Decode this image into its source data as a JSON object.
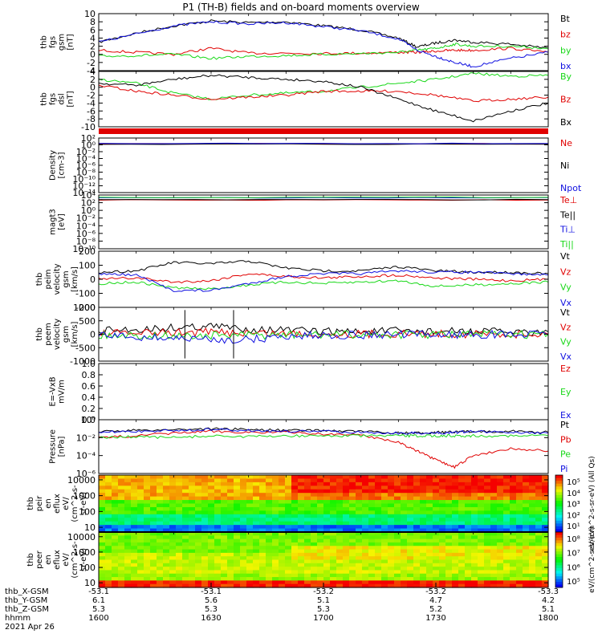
{
  "title": "P1 (TH-B) fields and on-board moments overview",
  "colors": {
    "black": "#000000",
    "red": "#e00000",
    "green": "#18d818",
    "blue": "#1010e0"
  },
  "chart_data": [
    {
      "type": "line",
      "panel": "fgs-mag",
      "ylabel": [
        "thb",
        "fgs",
        "gsm",
        "[nT]"
      ],
      "ylim": [
        -4,
        10
      ],
      "yticks": [
        10,
        8,
        6,
        4,
        2,
        0,
        -2,
        -4
      ],
      "tick_labels": [
        "10",
        "8",
        "6",
        "4",
        "2",
        "0",
        "-2",
        "-4"
      ],
      "x": [
        1600,
        1610,
        1620,
        1630,
        1640,
        1650,
        1700,
        1710,
        1720,
        1725,
        1730,
        1735,
        1740,
        1750,
        1800
      ],
      "series": [
        {
          "name": "Bt",
          "color": "black",
          "values": [
            3.0,
            5.2,
            7.0,
            8.2,
            7.8,
            8.0,
            7.0,
            6.0,
            4.0,
            1.8,
            2.8,
            3.5,
            3.0,
            2.5,
            1.5
          ]
        },
        {
          "name": "bz",
          "color": "red",
          "values": [
            1.0,
            0.5,
            0.0,
            1.5,
            0.3,
            0.3,
            0.2,
            0.3,
            0.5,
            0.5,
            0.8,
            1.0,
            1.0,
            1.5,
            0.5
          ]
        },
        {
          "name": "by",
          "color": "green",
          "values": [
            -0.5,
            -0.3,
            0.0,
            -1.0,
            -0.5,
            -0.3,
            0.0,
            0.2,
            0.5,
            1.0,
            1.5,
            2.5,
            2.0,
            2.0,
            1.5
          ]
        },
        {
          "name": "bx",
          "color": "blue",
          "values": [
            3.0,
            5.0,
            7.0,
            8.0,
            7.5,
            7.8,
            6.8,
            5.8,
            3.8,
            1.0,
            -0.5,
            -2.0,
            -3.0,
            -1.0,
            0.5
          ]
        }
      ]
    },
    {
      "type": "line",
      "panel": "fgs-B",
      "ylabel": [
        "thb",
        "fgs",
        "dsl",
        "[nT]"
      ],
      "ylim": [
        -10,
        4
      ],
      "yticks": [
        4,
        2,
        0,
        -2,
        -4,
        -6,
        -8,
        -10
      ],
      "tick_labels": [
        "4",
        "2",
        "0",
        "-2",
        "-4",
        "-6",
        "-8",
        "-10"
      ],
      "x": [
        1600,
        1610,
        1620,
        1630,
        1640,
        1650,
        1700,
        1710,
        1720,
        1730,
        1740,
        1750,
        1800
      ],
      "series": [
        {
          "name": "By",
          "color": "green",
          "values": [
            2.0,
            1.0,
            -1.5,
            -3.0,
            -2.0,
            -1.5,
            -1.0,
            0.0,
            1.0,
            2.0,
            3.5,
            2.8,
            3.0
          ]
        },
        {
          "name": "Bz",
          "color": "red",
          "values": [
            0.5,
            -1.0,
            -2.0,
            -3.0,
            -2.5,
            -2.0,
            -1.0,
            -1.0,
            -1.0,
            -2.0,
            -3.5,
            -3.0,
            -2.5
          ]
        },
        {
          "name": "Bx",
          "color": "black",
          "values": [
            1.0,
            0.5,
            2.0,
            3.0,
            2.5,
            2.0,
            1.5,
            0.0,
            -3.0,
            -6.0,
            -8.5,
            -6.0,
            -4.0
          ]
        }
      ]
    },
    {
      "type": "line",
      "panel": "density",
      "ylabel": [
        "Density",
        "[cm-3]"
      ],
      "ylim": [
        -14,
        2
      ],
      "log": true,
      "yticks": [
        2,
        0,
        -2,
        -4,
        -6,
        -8,
        -10,
        -12,
        -14
      ],
      "tick_labels": [
        "10²",
        "10⁰",
        "10⁻²",
        "10⁻⁴",
        "10⁻⁶",
        "10⁻⁸",
        "10⁻¹⁰",
        "10⁻¹²",
        "10⁻¹⁴"
      ],
      "series": [
        {
          "name": "Ne",
          "color": "red",
          "values": [
            0.3,
            0.3,
            0.3
          ]
        },
        {
          "name": "Ni",
          "color": "black",
          "values": [
            0.2,
            0.2,
            0.2
          ]
        },
        {
          "name": "Npot",
          "color": "blue",
          "values": [
            0.4,
            0.4,
            0.4
          ]
        }
      ]
    },
    {
      "type": "line",
      "panel": "temperature",
      "ylabel": [
        "magt3",
        "[eV]"
      ],
      "ylim": [
        -10,
        4
      ],
      "log": true,
      "yticks": [
        4,
        2,
        0,
        -2,
        -4,
        -6,
        -8,
        -10
      ],
      "tick_labels": [
        "10⁴",
        "10²",
        "10⁰",
        "10⁻²",
        "10⁻⁴",
        "10⁻⁶",
        "10⁻⁸",
        "10⁻¹⁰"
      ],
      "series": [
        {
          "name": "Te⊥",
          "color": "red",
          "values": [
            2.7,
            2.7,
            2.7
          ]
        },
        {
          "name": "Te||",
          "color": "black",
          "values": [
            2.8,
            2.8,
            2.8
          ]
        },
        {
          "name": "Ti⊥",
          "color": "blue",
          "values": [
            3.3,
            3.3,
            3.3
          ]
        },
        {
          "name": "Ti||",
          "color": "green",
          "values": [
            3.4,
            3.4,
            3.4
          ]
        }
      ]
    },
    {
      "type": "line",
      "panel": "peim-velocity",
      "ylabel": [
        "thb",
        "peim",
        "velocity",
        "gsm",
        "[km/s]"
      ],
      "ylim": [
        -200,
        200
      ],
      "yticks": [
        200,
        100,
        0,
        -100,
        -200
      ],
      "tick_labels": [
        "200",
        "100",
        "0",
        "-100",
        "-200"
      ],
      "x": [
        1600,
        1610,
        1620,
        1630,
        1640,
        1650,
        1700,
        1710,
        1720,
        1730,
        1740,
        1750,
        1800
      ],
      "series": [
        {
          "name": "Vt",
          "color": "black",
          "values": [
            50,
            60,
            120,
            110,
            130,
            80,
            60,
            60,
            90,
            60,
            50,
            50,
            40
          ]
        },
        {
          "name": "Vz",
          "color": "red",
          "values": [
            0,
            10,
            -20,
            -10,
            40,
            20,
            10,
            20,
            30,
            10,
            0,
            -10,
            0
          ]
        },
        {
          "name": "Vy",
          "color": "green",
          "values": [
            -30,
            -20,
            -60,
            -70,
            -40,
            -20,
            -30,
            -20,
            -10,
            -50,
            -40,
            -30,
            -20
          ]
        },
        {
          "name": "Vx",
          "color": "blue",
          "values": [
            40,
            30,
            -80,
            -80,
            -30,
            20,
            40,
            40,
            60,
            50,
            50,
            40,
            30
          ]
        }
      ]
    },
    {
      "type": "line",
      "panel": "peem-velocity",
      "ylabel": [
        "thb",
        "peem",
        "velocity",
        "gsm",
        "[km/s]"
      ],
      "ylim": [
        -1000,
        1000
      ],
      "yticks": [
        1000,
        500,
        0,
        -500,
        -1000
      ],
      "tick_labels": [
        "1000",
        "500",
        "0",
        "-500",
        "-1000"
      ],
      "x": [
        1600,
        1610,
        1620,
        1630,
        1640,
        1650,
        1700,
        1710,
        1720,
        1730,
        1740,
        1750,
        1800
      ],
      "series": [
        {
          "name": "Vt",
          "color": "black",
          "values": [
            120,
            180,
            250,
            300,
            200,
            150,
            100,
            100,
            120,
            110,
            100,
            100,
            90
          ]
        },
        {
          "name": "Vz",
          "color": "red",
          "values": [
            20,
            40,
            60,
            80,
            50,
            30,
            10,
            10,
            20,
            10,
            10,
            5,
            5
          ]
        },
        {
          "name": "Vy",
          "color": "green",
          "values": [
            -30,
            -40,
            -60,
            -50,
            -40,
            -30,
            -20,
            -20,
            -10,
            -20,
            -10,
            -10,
            -10
          ]
        },
        {
          "name": "Vx",
          "color": "blue",
          "values": [
            -50,
            -100,
            -150,
            -200,
            -200,
            -80,
            -30,
            -30,
            -20,
            -20,
            -10,
            -10,
            -10
          ]
        }
      ]
    },
    {
      "type": "line",
      "panel": "efield",
      "ylabel": [
        "E=-VxB",
        "mV/m"
      ],
      "ylim": [
        0,
        1
      ],
      "yticks": [
        1.0,
        0.8,
        0.6,
        0.4,
        0.2,
        0.0
      ],
      "tick_labels": [
        "1.0",
        "0.8",
        "0.6",
        "0.4",
        "0.2",
        "0.0"
      ],
      "series": [
        {
          "name": "Ez",
          "color": "red",
          "values": []
        },
        {
          "name": "Ey",
          "color": "green",
          "values": []
        },
        {
          "name": "Ex",
          "color": "blue",
          "values": []
        }
      ]
    },
    {
      "type": "line",
      "panel": "pressure",
      "ylabel": [
        "Pressure",
        "[nPa]"
      ],
      "ylim": [
        -6,
        0
      ],
      "log": true,
      "yticks": [
        0,
        -2,
        -4,
        -6
      ],
      "tick_labels": [
        "10⁰",
        "10⁻²",
        "10⁻⁴",
        "10⁻⁶"
      ],
      "x": [
        1600,
        1610,
        1620,
        1630,
        1640,
        1650,
        1700,
        1710,
        1720,
        1725,
        1730,
        1735,
        1740,
        1750,
        1800
      ],
      "series": [
        {
          "name": "Pt",
          "color": "black",
          "values": [
            -1.3,
            -1.2,
            -1.1,
            -1.0,
            -1.1,
            -1.2,
            -1.2,
            -1.3,
            -1.5,
            -1.5,
            -1.4,
            -1.4,
            -1.3,
            -1.3,
            -1.4
          ]
        },
        {
          "name": "Pb",
          "color": "red",
          "values": [
            -2.0,
            -1.8,
            -1.5,
            -1.3,
            -1.4,
            -1.4,
            -1.6,
            -1.7,
            -2.5,
            -3.5,
            -4.5,
            -5.3,
            -4.0,
            -3.2,
            -3.5
          ]
        },
        {
          "name": "Pe",
          "color": "green",
          "values": [
            -2.0,
            -1.9,
            -2.0,
            -1.8,
            -1.9,
            -1.8,
            -1.8,
            -1.8,
            -1.8,
            -1.8,
            -1.8,
            -1.8,
            -1.8,
            -1.8,
            -1.8
          ]
        },
        {
          "name": "Pi",
          "color": "blue",
          "values": [
            -1.4,
            -1.3,
            -1.2,
            -1.1,
            -1.2,
            -1.3,
            -1.3,
            -1.4,
            -1.5,
            -1.5,
            -1.5,
            -1.4,
            -1.3,
            -1.4,
            -1.5
          ]
        }
      ]
    },
    {
      "type": "heatmap",
      "panel": "peir-en-eflux",
      "ylabel": [
        "thb",
        "peir",
        "en",
        "eflux",
        "eV/",
        "(cm^2-s-",
        "sr-eV)"
      ],
      "ylim": [
        5,
        20000
      ],
      "log": true,
      "yticks": [
        10000,
        1000,
        100,
        10
      ],
      "tick_labels": [
        "10000",
        "1000",
        "100",
        "10"
      ],
      "colorbar": {
        "label": "eV/(cm^2-s-sr-eV) (All Qs)",
        "ticks": [
          "10⁵",
          "10⁴",
          "10³",
          "10²",
          "10¹"
        ]
      }
    },
    {
      "type": "heatmap",
      "panel": "peer-en-eflux",
      "ylabel": [
        "thb",
        "peer",
        "en",
        "eflux",
        "eV/",
        "(cm^2-s-",
        "sr-eV)"
      ],
      "ylim": [
        5,
        20000
      ],
      "log": true,
      "yticks": [
        10000,
        1000,
        100,
        10
      ],
      "tick_labels": [
        "10000",
        "1000",
        "100",
        "10"
      ],
      "colorbar": {
        "label": "eV/(cm^2-s-sr-eV)",
        "ticks": [
          "10⁸",
          "10⁷",
          "10⁶",
          "10⁵"
        ]
      }
    }
  ],
  "time_axis": {
    "row_labels": [
      "thb_X-GSM",
      "thb_Y-GSM",
      "thb_Z-GSM",
      "hhmm",
      "2021 Apr 26"
    ],
    "columns": [
      {
        "x": "-53.1",
        "y": "6.1",
        "z": "5.3",
        "hhmm": "1600"
      },
      {
        "x": "-53.1",
        "y": "5.6",
        "z": "5.3",
        "hhmm": "1630"
      },
      {
        "x": "-53.2",
        "y": "5.1",
        "z": "5.3",
        "hhmm": "1700"
      },
      {
        "x": "-53.2",
        "y": "4.7",
        "z": "5.2",
        "hhmm": "1730"
      },
      {
        "x": "-53.3",
        "y": "4.2",
        "z": "5.1",
        "hhmm": "1800"
      }
    ]
  }
}
